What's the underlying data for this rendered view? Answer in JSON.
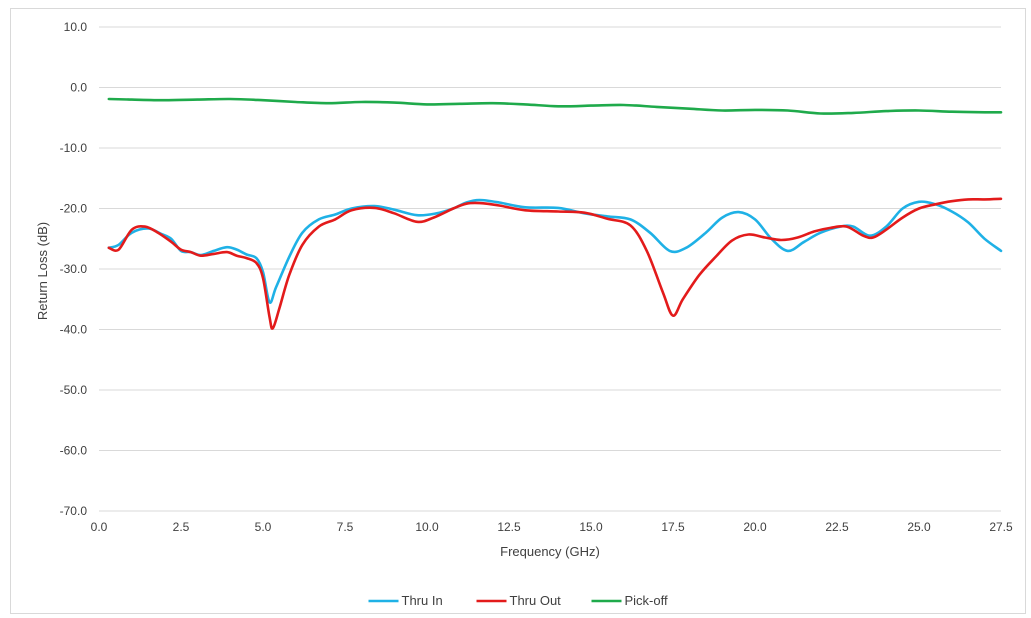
{
  "chart_data": {
    "type": "line",
    "title": "",
    "xlabel": "Frequency (GHz)",
    "ylabel": "Return Loss (dB)",
    "xlim": [
      0,
      27.5
    ],
    "ylim": [
      -70,
      10
    ],
    "x_ticks": [
      "0.0",
      "2.5",
      "5.0",
      "7.5",
      "10.0",
      "12.5",
      "15.0",
      "17.5",
      "20.0",
      "22.5",
      "25.0",
      "27.5"
    ],
    "y_ticks": [
      "10.0",
      "0.0",
      "-10.0",
      "-20.0",
      "-30.0",
      "-40.0",
      "-50.0",
      "-60.0",
      "-70.0"
    ],
    "grid": "horizontal",
    "legend_position": "bottom",
    "series": [
      {
        "name": "Thru In",
        "color": "#1fb1e6",
        "points": [
          [
            0.3,
            -26.5
          ],
          [
            0.6,
            -26
          ],
          [
            1.0,
            -24
          ],
          [
            1.5,
            -23.3
          ],
          [
            1.9,
            -24.2
          ],
          [
            2.2,
            -25
          ],
          [
            2.5,
            -27
          ],
          [
            2.8,
            -27.2
          ],
          [
            3.1,
            -27.7
          ],
          [
            3.5,
            -27
          ],
          [
            3.9,
            -26.4
          ],
          [
            4.2,
            -26.8
          ],
          [
            4.5,
            -27.6
          ],
          [
            4.8,
            -28.2
          ],
          [
            5.0,
            -30.5
          ],
          [
            5.2,
            -35.5
          ],
          [
            5.4,
            -33
          ],
          [
            5.8,
            -28
          ],
          [
            6.2,
            -24
          ],
          [
            6.7,
            -21.8
          ],
          [
            7.2,
            -21
          ],
          [
            7.7,
            -20
          ],
          [
            8.4,
            -19.6
          ],
          [
            9.0,
            -20.2
          ],
          [
            9.7,
            -21.1
          ],
          [
            10.3,
            -20.8
          ],
          [
            10.8,
            -20
          ],
          [
            11.2,
            -19
          ],
          [
            11.6,
            -18.6
          ],
          [
            12.2,
            -19
          ],
          [
            13.0,
            -19.8
          ],
          [
            14.0,
            -19.9
          ],
          [
            14.8,
            -20.8
          ],
          [
            15.5,
            -21.3
          ],
          [
            16.2,
            -21.8
          ],
          [
            16.8,
            -24
          ],
          [
            17.4,
            -27
          ],
          [
            17.9,
            -26.5
          ],
          [
            18.5,
            -24
          ],
          [
            19.0,
            -21.5
          ],
          [
            19.5,
            -20.6
          ],
          [
            20.0,
            -21.8
          ],
          [
            20.5,
            -25
          ],
          [
            21.0,
            -27
          ],
          [
            21.5,
            -25.5
          ],
          [
            22.0,
            -24
          ],
          [
            22.6,
            -23
          ],
          [
            23.0,
            -23
          ],
          [
            23.5,
            -24.5
          ],
          [
            24.0,
            -23
          ],
          [
            24.5,
            -20
          ],
          [
            25.0,
            -18.9
          ],
          [
            25.5,
            -19.3
          ],
          [
            26.0,
            -20.5
          ],
          [
            26.5,
            -22.3
          ],
          [
            27.0,
            -25
          ],
          [
            27.5,
            -27
          ]
        ]
      },
      {
        "name": "Thru Out",
        "color": "#e31b1b",
        "points": [
          [
            0.3,
            -26.5
          ],
          [
            0.6,
            -26.8
          ],
          [
            1.0,
            -23.5
          ],
          [
            1.4,
            -23
          ],
          [
            1.8,
            -24
          ],
          [
            2.2,
            -25.5
          ],
          [
            2.5,
            -26.8
          ],
          [
            2.8,
            -27.2
          ],
          [
            3.1,
            -27.8
          ],
          [
            3.5,
            -27.5
          ],
          [
            3.9,
            -27.2
          ],
          [
            4.2,
            -27.8
          ],
          [
            4.5,
            -28.2
          ],
          [
            4.8,
            -29
          ],
          [
            5.0,
            -31.5
          ],
          [
            5.2,
            -38
          ],
          [
            5.3,
            -39.8
          ],
          [
            5.5,
            -36.5
          ],
          [
            5.8,
            -31
          ],
          [
            6.2,
            -26
          ],
          [
            6.7,
            -23
          ],
          [
            7.2,
            -21.8
          ],
          [
            7.7,
            -20.3
          ],
          [
            8.4,
            -19.9
          ],
          [
            9.0,
            -20.8
          ],
          [
            9.7,
            -22.2
          ],
          [
            10.2,
            -21.5
          ],
          [
            10.8,
            -20
          ],
          [
            11.2,
            -19.2
          ],
          [
            11.6,
            -19.1
          ],
          [
            12.2,
            -19.5
          ],
          [
            13.0,
            -20.3
          ],
          [
            14.0,
            -20.5
          ],
          [
            14.8,
            -20.7
          ],
          [
            15.5,
            -21.7
          ],
          [
            16.2,
            -22.8
          ],
          [
            16.7,
            -27
          ],
          [
            17.2,
            -34
          ],
          [
            17.5,
            -37.7
          ],
          [
            17.8,
            -35
          ],
          [
            18.3,
            -31
          ],
          [
            18.8,
            -28
          ],
          [
            19.3,
            -25.3
          ],
          [
            19.8,
            -24.3
          ],
          [
            20.3,
            -24.8
          ],
          [
            20.8,
            -25.2
          ],
          [
            21.3,
            -24.8
          ],
          [
            21.8,
            -23.8
          ],
          [
            22.3,
            -23.2
          ],
          [
            22.8,
            -23
          ],
          [
            23.3,
            -24.5
          ],
          [
            23.6,
            -24.8
          ],
          [
            24.0,
            -23.5
          ],
          [
            24.5,
            -21.5
          ],
          [
            25.0,
            -20
          ],
          [
            25.5,
            -19.3
          ],
          [
            26.0,
            -18.8
          ],
          [
            26.5,
            -18.5
          ],
          [
            27.0,
            -18.5
          ],
          [
            27.5,
            -18.4
          ]
        ]
      },
      {
        "name": "Pick-off",
        "color": "#1faa4b",
        "points": [
          [
            0.3,
            -1.9
          ],
          [
            1.0,
            -2
          ],
          [
            2.0,
            -2.1
          ],
          [
            3.0,
            -2
          ],
          [
            4.0,
            -1.9
          ],
          [
            5.0,
            -2.1
          ],
          [
            6.0,
            -2.4
          ],
          [
            7.0,
            -2.6
          ],
          [
            8.0,
            -2.4
          ],
          [
            9.0,
            -2.5
          ],
          [
            10.0,
            -2.8
          ],
          [
            11.0,
            -2.7
          ],
          [
            12.0,
            -2.6
          ],
          [
            13.0,
            -2.8
          ],
          [
            14.0,
            -3.1
          ],
          [
            15.0,
            -3
          ],
          [
            16.0,
            -2.9
          ],
          [
            17.0,
            -3.2
          ],
          [
            18.0,
            -3.5
          ],
          [
            19.0,
            -3.8
          ],
          [
            20.0,
            -3.7
          ],
          [
            21.0,
            -3.8
          ],
          [
            22.0,
            -4.3
          ],
          [
            23.0,
            -4.2
          ],
          [
            24.0,
            -3.9
          ],
          [
            25.0,
            -3.8
          ],
          [
            26.0,
            -4
          ],
          [
            27.0,
            -4.1
          ],
          [
            27.5,
            -4.1
          ]
        ]
      }
    ]
  }
}
